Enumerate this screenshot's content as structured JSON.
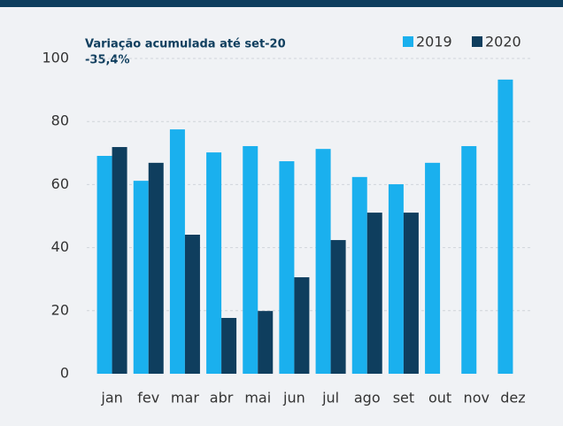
{
  "chart_data": {
    "type": "bar",
    "annotations": [
      "Variação  acumulada até set-20",
      "-35,4%"
    ],
    "categories": [
      "jan",
      "fev",
      "mar",
      "abr",
      "mai",
      "jun",
      "jul",
      "ago",
      "set",
      "out",
      "nov",
      "dez"
    ],
    "series": [
      {
        "name": "2019",
        "color": "#1ab0ee",
        "values": [
          69.1,
          61.2,
          77.5,
          70.2,
          72.2,
          67.4,
          71.3,
          62.4,
          60.1,
          66.9,
          72.2,
          93.3
        ]
      },
      {
        "name": "2020",
        "color": "#0f3e5e",
        "values": [
          71.9,
          66.9,
          44.1,
          17.7,
          19.9,
          30.6,
          42.4,
          51.1,
          51.1,
          null,
          null,
          null
        ]
      }
    ],
    "ylim": [
      0,
      100
    ],
    "yticks": [
      0,
      20,
      40,
      60,
      80,
      100
    ],
    "grid": true,
    "legend": "top-right"
  }
}
